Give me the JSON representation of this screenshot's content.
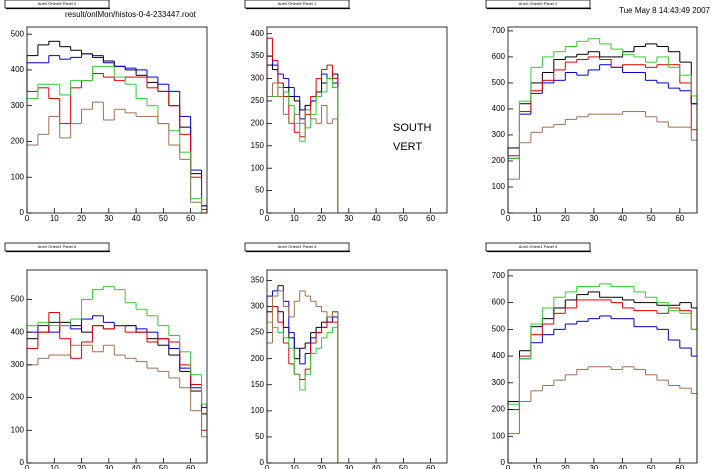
{
  "file": "result/onlMon/histos-0-4-233447.root",
  "date": "Tue May  8 14:43:49 2007",
  "labels": [
    "SOUTH",
    "VERT"
  ],
  "chart_data": [
    {
      "type": "histogram",
      "title": "Arm0 Orient0 Panel 0",
      "bins": [
        0,
        4,
        8,
        12,
        16,
        20,
        24,
        28,
        32,
        36,
        40,
        44,
        48,
        52,
        56,
        60,
        64,
        66
      ],
      "xlim": [
        0,
        66
      ],
      "xticks": [
        0,
        10,
        20,
        30,
        40,
        50,
        60
      ],
      "ylim": [
        0,
        520
      ],
      "yticks": [
        0,
        100,
        200,
        300,
        400,
        500
      ],
      "series": [
        {
          "color": "#000000",
          "values": [
            440,
            470,
            480,
            465,
            455,
            445,
            435,
            425,
            410,
            400,
            385,
            365,
            340,
            300,
            240,
            110,
            20
          ]
        },
        {
          "color": "#0000cc",
          "values": [
            420,
            420,
            440,
            430,
            435,
            445,
            440,
            420,
            410,
            405,
            400,
            380,
            360,
            340,
            270,
            120,
            20
          ]
        },
        {
          "color": "#dd0000",
          "values": [
            340,
            350,
            320,
            250,
            350,
            370,
            390,
            380,
            370,
            380,
            380,
            350,
            340,
            300,
            220,
            100,
            10
          ]
        },
        {
          "color": "#33cc33",
          "values": [
            320,
            360,
            360,
            330,
            370,
            370,
            410,
            410,
            380,
            360,
            320,
            300,
            250,
            230,
            170,
            40,
            0
          ]
        },
        {
          "color": "#a07050",
          "values": [
            190,
            220,
            270,
            210,
            250,
            290,
            310,
            260,
            290,
            280,
            270,
            270,
            250,
            190,
            150,
            30,
            0
          ]
        }
      ]
    },
    {
      "type": "histogram",
      "title": "Arm0 Orient0 Panel 1",
      "bins": [
        0,
        2,
        4,
        6,
        8,
        10,
        12,
        14,
        16,
        18,
        20,
        22,
        24,
        26
      ],
      "xlim": [
        0,
        66
      ],
      "xticks": [
        0,
        10,
        20,
        30,
        40,
        50,
        60
      ],
      "ylim": [
        0,
        415
      ],
      "yticks": [
        0,
        50,
        100,
        150,
        200,
        250,
        300,
        350,
        400
      ],
      "series": [
        {
          "color": "#000000",
          "values": [
            330,
            320,
            290,
            280,
            260,
            250,
            230,
            240,
            250,
            270,
            290,
            300,
            310
          ]
        },
        {
          "color": "#0000cc",
          "values": [
            350,
            330,
            310,
            300,
            280,
            260,
            210,
            240,
            250,
            260,
            310,
            300,
            290
          ]
        },
        {
          "color": "#dd0000",
          "values": [
            390,
            340,
            290,
            260,
            200,
            180,
            170,
            220,
            260,
            300,
            320,
            330,
            300
          ]
        },
        {
          "color": "#33cc33",
          "values": [
            260,
            260,
            280,
            270,
            240,
            200,
            160,
            190,
            220,
            260,
            270,
            300,
            280
          ]
        },
        {
          "color": "#a07050",
          "values": [
            260,
            290,
            260,
            220,
            200,
            220,
            200,
            230,
            210,
            200,
            240,
            200,
            210
          ]
        }
      ]
    },
    {
      "type": "histogram",
      "title": "Arm0 Orient0 Panel 2",
      "bins": [
        0,
        4,
        8,
        12,
        16,
        20,
        24,
        28,
        32,
        36,
        40,
        44,
        48,
        52,
        56,
        60,
        64,
        66
      ],
      "xlim": [
        0,
        66
      ],
      "xticks": [
        0,
        10,
        20,
        30,
        40,
        50,
        60
      ],
      "ylim": [
        0,
        715
      ],
      "yticks": [
        0,
        100,
        200,
        300,
        400,
        500,
        600,
        700
      ],
      "series": [
        {
          "color": "#000000",
          "values": [
            250,
            420,
            500,
            540,
            590,
            600,
            610,
            620,
            600,
            600,
            620,
            640,
            650,
            640,
            620,
            580,
            420
          ]
        },
        {
          "color": "#0000cc",
          "values": [
            210,
            380,
            460,
            500,
            510,
            540,
            530,
            550,
            570,
            560,
            540,
            540,
            510,
            500,
            480,
            470,
            420
          ]
        },
        {
          "color": "#dd0000",
          "values": [
            220,
            390,
            470,
            510,
            550,
            580,
            590,
            600,
            590,
            560,
            570,
            570,
            560,
            570,
            570,
            500,
            320
          ]
        },
        {
          "color": "#33cc33",
          "values": [
            210,
            430,
            560,
            600,
            620,
            640,
            660,
            670,
            650,
            630,
            610,
            600,
            580,
            600,
            560,
            530,
            450
          ]
        },
        {
          "color": "#a07050",
          "values": [
            130,
            270,
            310,
            330,
            340,
            360,
            370,
            380,
            380,
            380,
            390,
            390,
            370,
            350,
            330,
            330,
            280
          ]
        }
      ]
    },
    {
      "type": "histogram",
      "title": "Arm0 Orient1 Panel 5",
      "bins": [
        0,
        4,
        8,
        12,
        16,
        20,
        24,
        28,
        32,
        36,
        40,
        44,
        48,
        52,
        56,
        60,
        64,
        66
      ],
      "xlim": [
        0,
        66
      ],
      "xticks": [
        0,
        10,
        20,
        30,
        40,
        50,
        60
      ],
      "ylim": [
        0,
        590
      ],
      "yticks": [
        0,
        100,
        200,
        300,
        400,
        500
      ],
      "series": [
        {
          "color": "#000000",
          "values": [
            380,
            400,
            430,
            430,
            420,
            400,
            420,
            410,
            420,
            420,
            400,
            380,
            360,
            330,
            280,
            220,
            150
          ]
        },
        {
          "color": "#0000cc",
          "values": [
            400,
            420,
            400,
            420,
            410,
            440,
            450,
            430,
            420,
            420,
            410,
            400,
            380,
            350,
            290,
            230,
            170
          ]
        },
        {
          "color": "#dd0000",
          "values": [
            350,
            400,
            460,
            380,
            320,
            370,
            420,
            410,
            420,
            400,
            400,
            370,
            380,
            370,
            300,
            240,
            100
          ]
        },
        {
          "color": "#33cc33",
          "values": [
            420,
            430,
            420,
            420,
            440,
            500,
            530,
            540,
            530,
            490,
            470,
            450,
            420,
            390,
            340,
            270,
            180
          ]
        },
        {
          "color": "#a07050",
          "values": [
            300,
            320,
            330,
            330,
            360,
            360,
            340,
            360,
            330,
            320,
            310,
            290,
            280,
            260,
            230,
            160,
            80
          ]
        }
      ]
    },
    {
      "type": "histogram",
      "title": "Arm0 Orient1 Panel 4",
      "bins": [
        0,
        2,
        4,
        6,
        8,
        10,
        12,
        14,
        16,
        18,
        20,
        22,
        24,
        26
      ],
      "xlim": [
        0,
        66
      ],
      "xticks": [
        0,
        10,
        20,
        30,
        40,
        50,
        60
      ],
      "ylim": [
        0,
        370
      ],
      "yticks": [
        0,
        50,
        100,
        150,
        200,
        250,
        300,
        350
      ],
      "series": [
        {
          "color": "#000000",
          "values": [
            290,
            300,
            290,
            260,
            240,
            200,
            220,
            230,
            250,
            260,
            270,
            280,
            290
          ]
        },
        {
          "color": "#0000cc",
          "values": [
            320,
            330,
            340,
            310,
            250,
            220,
            190,
            210,
            240,
            250,
            260,
            270,
            280
          ]
        },
        {
          "color": "#dd0000",
          "values": [
            290,
            300,
            270,
            230,
            190,
            170,
            160,
            180,
            230,
            250,
            260,
            270,
            270
          ]
        },
        {
          "color": "#33cc33",
          "values": [
            270,
            260,
            250,
            240,
            220,
            170,
            140,
            170,
            210,
            220,
            240,
            250,
            260
          ]
        },
        {
          "color": "#a07050",
          "values": [
            230,
            320,
            330,
            300,
            280,
            310,
            330,
            320,
            310,
            300,
            290,
            280,
            290
          ]
        }
      ]
    },
    {
      "type": "histogram",
      "title": "Arm0 Orient1 Panel 3",
      "bins": [
        0,
        4,
        8,
        12,
        16,
        20,
        24,
        28,
        32,
        36,
        40,
        44,
        48,
        52,
        56,
        60,
        64,
        66
      ],
      "xlim": [
        0,
        66
      ],
      "xticks": [
        0,
        10,
        20,
        30,
        40,
        50,
        60
      ],
      "ylim": [
        0,
        722
      ],
      "yticks": [
        0,
        100,
        200,
        300,
        400,
        500,
        600,
        700
      ],
      "series": [
        {
          "color": "#000000",
          "values": [
            230,
            420,
            510,
            540,
            580,
            610,
            630,
            640,
            620,
            620,
            610,
            600,
            600,
            590,
            590,
            600,
            580
          ]
        },
        {
          "color": "#0000cc",
          "values": [
            200,
            390,
            450,
            480,
            500,
            520,
            530,
            540,
            550,
            540,
            540,
            510,
            510,
            500,
            460,
            430,
            400
          ]
        },
        {
          "color": "#dd0000",
          "values": [
            200,
            400,
            480,
            520,
            560,
            580,
            610,
            610,
            610,
            600,
            580,
            570,
            570,
            560,
            580,
            570,
            500
          ]
        },
        {
          "color": "#33cc33",
          "values": [
            220,
            390,
            520,
            580,
            620,
            640,
            660,
            660,
            670,
            660,
            660,
            640,
            620,
            600,
            570,
            560,
            500
          ]
        },
        {
          "color": "#a07050",
          "values": [
            110,
            230,
            270,
            290,
            310,
            330,
            350,
            360,
            360,
            350,
            360,
            350,
            330,
            310,
            290,
            280,
            260
          ]
        }
      ]
    }
  ]
}
